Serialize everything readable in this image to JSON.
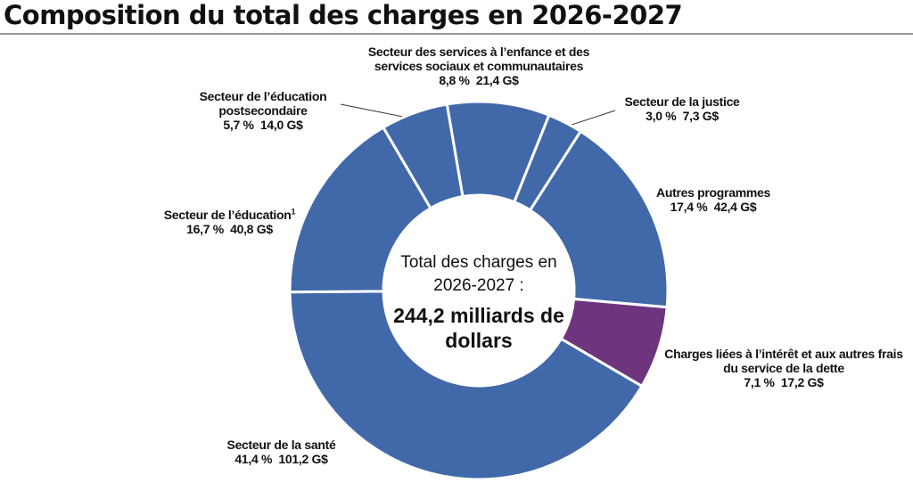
{
  "chart_data": {
    "type": "donut",
    "title": "Composition du total des charges en 2026-2027",
    "center_text": "Total des charges en 2026-2027 :",
    "center_value": "244,2 milliards de dollars",
    "categories": [
      "Secteur des services à l’enfance et des services sociaux et communautaires",
      "Secteur de la justice",
      "Autres programmes",
      "Charges liées à l’intérêt et aux autres frais du service de la dette",
      "Secteur de la santé",
      "Secteur de l’éducation",
      "Secteur de l’éducation postsecondaire"
    ],
    "category_notes": [
      null,
      null,
      null,
      null,
      null,
      "1",
      null
    ],
    "values": [
      21.4,
      7.3,
      42.4,
      17.2,
      101.2,
      40.8,
      14.0
    ],
    "value_labels": [
      "21,4 G$",
      "7,3 G$",
      "42,4 G$",
      "17,2 G$",
      "101,2 G$",
      "40,8 G$",
      "14,0 G$"
    ],
    "shares": [
      8.8,
      3.0,
      17.4,
      7.1,
      41.4,
      16.7,
      5.7
    ],
    "share_labels": [
      "8,8 %",
      "3,0 %",
      "17,4 %",
      "7,1 %",
      "41,4 %",
      "16,7 %",
      "5,7 %"
    ],
    "colors": [
      "#4169a9",
      "#4169a9",
      "#4169a9",
      "#6e347e",
      "#4169a9",
      "#4169a9",
      "#4169a9"
    ]
  }
}
